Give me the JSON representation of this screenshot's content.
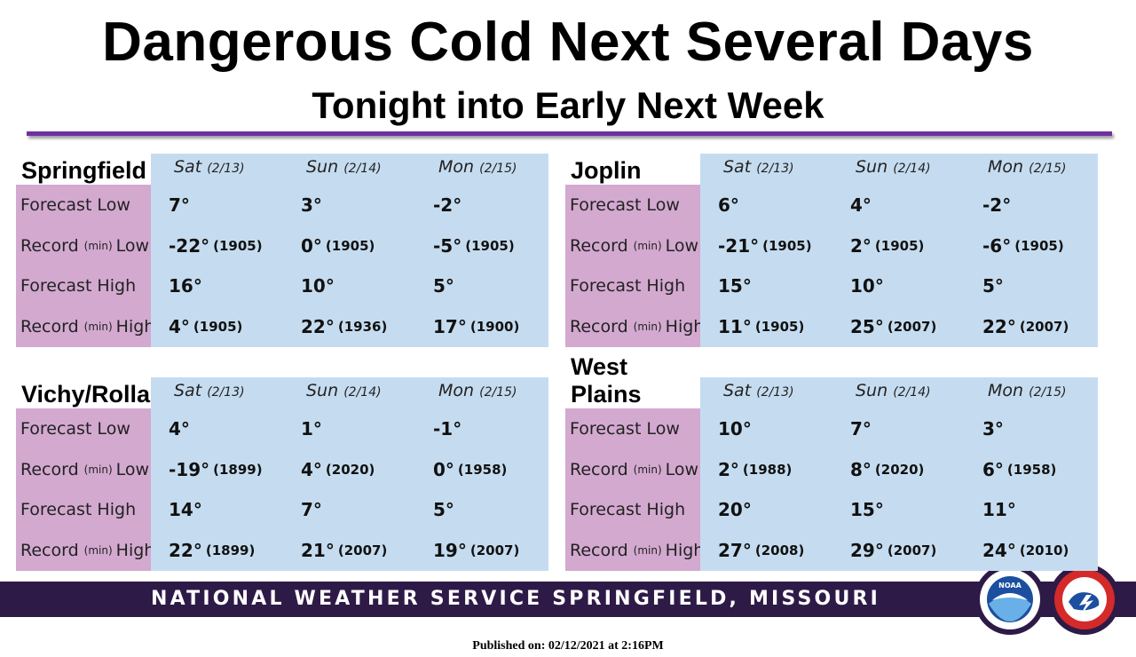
{
  "header": {
    "title": "Dangerous Cold Next Several Days",
    "subtitle": "Tonight into Early Next Week"
  },
  "panels": [
    {
      "city": "Springfield",
      "days": [
        {
          "name": "Sat",
          "date": "(2/13)"
        },
        {
          "name": "Sun",
          "date": "(2/14)"
        },
        {
          "name": "Mon",
          "date": "(2/15)"
        }
      ],
      "rows": [
        {
          "label": {
            "main": "Forecast Low"
          },
          "cells": [
            {
              "temp": "7°"
            },
            {
              "temp": "3°"
            },
            {
              "temp": "-2°"
            }
          ]
        },
        {
          "label": {
            "main": "Record",
            "min": "(min)",
            "end": "Low"
          },
          "cells": [
            {
              "temp": "-22°",
              "year": "(1905)"
            },
            {
              "temp": "0°",
              "year": "(1905)"
            },
            {
              "temp": "-5°",
              "year": "(1905)"
            }
          ]
        },
        {
          "label": {
            "main": "Forecast High"
          },
          "cells": [
            {
              "temp": "16°"
            },
            {
              "temp": "10°"
            },
            {
              "temp": "5°"
            }
          ]
        },
        {
          "label": {
            "main": "Record",
            "min": "(min)",
            "end": "High"
          },
          "cells": [
            {
              "temp": "4°",
              "year": "(1905)"
            },
            {
              "temp": "22°",
              "year": "(1936)"
            },
            {
              "temp": "17°",
              "year": "(1900)"
            }
          ]
        }
      ]
    },
    {
      "city": "Joplin",
      "days": [
        {
          "name": "Sat",
          "date": "(2/13)"
        },
        {
          "name": "Sun",
          "date": "(2/14)"
        },
        {
          "name": "Mon",
          "date": "(2/15)"
        }
      ],
      "rows": [
        {
          "label": {
            "main": "Forecast Low"
          },
          "cells": [
            {
              "temp": "6°"
            },
            {
              "temp": "4°"
            },
            {
              "temp": "-2°"
            }
          ]
        },
        {
          "label": {
            "main": "Record",
            "min": "(min)",
            "end": "Low"
          },
          "cells": [
            {
              "temp": "-21°",
              "year": "(1905)"
            },
            {
              "temp": "2°",
              "year": "(1905)"
            },
            {
              "temp": "-6°",
              "year": "(1905)"
            }
          ]
        },
        {
          "label": {
            "main": "Forecast High"
          },
          "cells": [
            {
              "temp": "15°"
            },
            {
              "temp": "10°"
            },
            {
              "temp": "5°"
            }
          ]
        },
        {
          "label": {
            "main": "Record",
            "min": "(min)",
            "end": "High"
          },
          "cells": [
            {
              "temp": "11°",
              "year": "(1905)"
            },
            {
              "temp": "25°",
              "year": "(2007)"
            },
            {
              "temp": "22°",
              "year": "(2007)"
            }
          ]
        }
      ]
    },
    {
      "city": "Vichy/Rolla",
      "days": [
        {
          "name": "Sat",
          "date": "(2/13)"
        },
        {
          "name": "Sun",
          "date": "(2/14)"
        },
        {
          "name": "Mon",
          "date": "(2/15)"
        }
      ],
      "rows": [
        {
          "label": {
            "main": "Forecast Low"
          },
          "cells": [
            {
              "temp": "4°"
            },
            {
              "temp": "1°"
            },
            {
              "temp": "-1°"
            }
          ]
        },
        {
          "label": {
            "main": "Record",
            "min": "(min)",
            "end": "Low"
          },
          "cells": [
            {
              "temp": "-19°",
              "year": "(1899)"
            },
            {
              "temp": "4°",
              "year": "(2020)"
            },
            {
              "temp": "0°",
              "year": "(1958)"
            }
          ]
        },
        {
          "label": {
            "main": "Forecast High"
          },
          "cells": [
            {
              "temp": "14°"
            },
            {
              "temp": "7°"
            },
            {
              "temp": "5°"
            }
          ]
        },
        {
          "label": {
            "main": "Record",
            "min": "(min)",
            "end": "High"
          },
          "cells": [
            {
              "temp": "22°",
              "year": "(1899)"
            },
            {
              "temp": "21°",
              "year": "(2007)"
            },
            {
              "temp": "19°",
              "year": "(2007)"
            }
          ]
        }
      ]
    },
    {
      "city": "West Plains",
      "days": [
        {
          "name": "Sat",
          "date": "(2/13)"
        },
        {
          "name": "Sun",
          "date": "(2/14)"
        },
        {
          "name": "Mon",
          "date": "(2/15)"
        }
      ],
      "rows": [
        {
          "label": {
            "main": "Forecast Low"
          },
          "cells": [
            {
              "temp": "10°"
            },
            {
              "temp": "7°"
            },
            {
              "temp": "3°"
            }
          ]
        },
        {
          "label": {
            "main": "Record",
            "min": "(min)",
            "end": "Low"
          },
          "cells": [
            {
              "temp": "2°",
              "year": "(1988)"
            },
            {
              "temp": "8°",
              "year": "(2020)"
            },
            {
              "temp": "6°",
              "year": "(1958)"
            }
          ]
        },
        {
          "label": {
            "main": "Forecast High"
          },
          "cells": [
            {
              "temp": "20°"
            },
            {
              "temp": "15°"
            },
            {
              "temp": "11°"
            }
          ]
        },
        {
          "label": {
            "main": "Record",
            "min": "(min)",
            "end": "High"
          },
          "cells": [
            {
              "temp": "27°",
              "year": "(2008)"
            },
            {
              "temp": "29°",
              "year": "(2007)"
            },
            {
              "temp": "24°",
              "year": "(2010)"
            }
          ]
        }
      ]
    }
  ],
  "footer": {
    "agency": "NATIONAL WEATHER SERVICE SPRINGFIELD, MISSOURI",
    "published": "Published on: 02/12/2021 at 2:16PM",
    "logo": "NOAA"
  }
}
